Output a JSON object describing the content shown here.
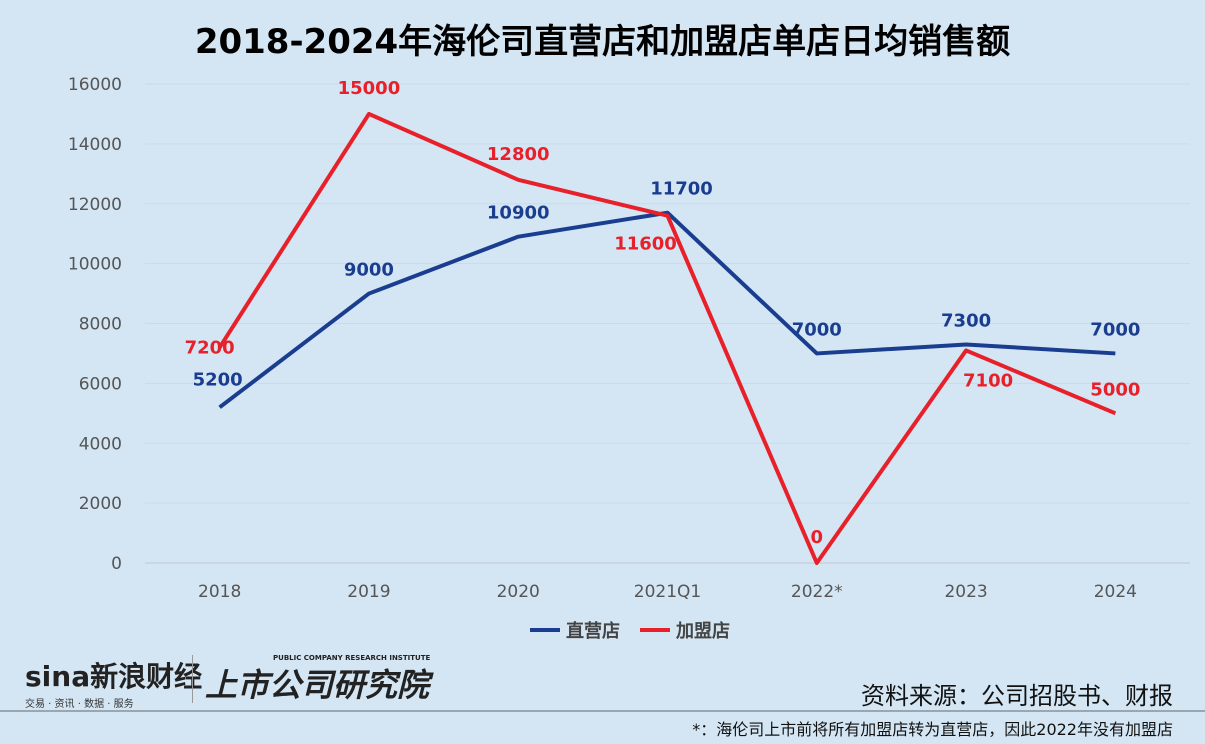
{
  "chart_data": {
    "type": "line",
    "title": "2018-2024年海伦司直营店和加盟店单店日均销售额",
    "categories": [
      "2018",
      "2019",
      "2020",
      "2021Q1",
      "2022*",
      "2023",
      "2024"
    ],
    "ylim": [
      0,
      16000
    ],
    "yticks": [
      0,
      2000,
      4000,
      6000,
      8000,
      10000,
      12000,
      14000,
      16000
    ],
    "grid": true,
    "legend_position": "bottom",
    "series": [
      {
        "name": "直营店",
        "color": "#1a3d8f",
        "values": [
          5200,
          9000,
          10900,
          11700,
          7000,
          7300,
          7000
        ]
      },
      {
        "name": "加盟店",
        "color": "#e8202a",
        "values": [
          7200,
          15000,
          12800,
          11600,
          0,
          7100,
          5000
        ]
      }
    ]
  },
  "footer": {
    "logo_sina": "sina新浪财经",
    "logo_sina_sub": "交易 · 资讯 · 数据 · 服务",
    "logo_research": "上市公司研究院",
    "logo_research_en": "PUBLIC COMPANY RESEARCH INSTITUTE",
    "source": "资料来源：公司招股书、财报",
    "note": "*：海伦司上市前将所有加盟店转为直营店，因此2022年没有加盟店"
  }
}
